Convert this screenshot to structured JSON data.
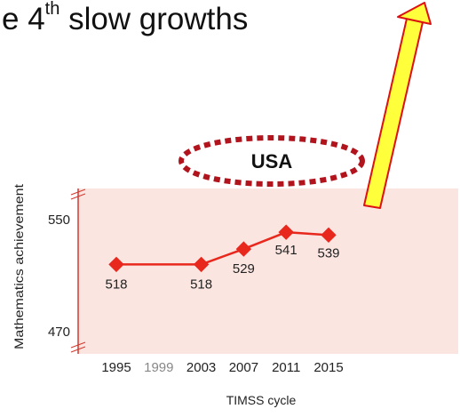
{
  "heading": {
    "prefix": "e 4",
    "superscript": "th",
    "suffix": " slow growths"
  },
  "colors": {
    "plot_background": "#fbe5e1",
    "series": "#e8281d",
    "ellipse": "#b2141d",
    "arrow_fill": "#ffff3c",
    "arrow_stroke": "#dd1111"
  },
  "chart_data": {
    "type": "line",
    "annotation": "USA",
    "xlabel": "TIMSS cycle",
    "ylabel": "Mathematics achievement",
    "x": [
      "1995",
      "1999",
      "2003",
      "2007",
      "2011",
      "2015"
    ],
    "y_ticks": [
      "550",
      "470"
    ],
    "ylim": [
      470,
      550
    ],
    "axis_break": true,
    "series": [
      {
        "points": [
          {
            "x": "1995",
            "y": 518,
            "label": "518"
          },
          {
            "x": "2003",
            "y": 518,
            "label": "518"
          },
          {
            "x": "2007",
            "y": 529,
            "label": "529"
          },
          {
            "x": "2011",
            "y": 541,
            "label": "541"
          },
          {
            "x": "2015",
            "y": 539,
            "label": "539"
          }
        ]
      }
    ],
    "highlight": {
      "x": "2011",
      "style": "arrow"
    }
  }
}
